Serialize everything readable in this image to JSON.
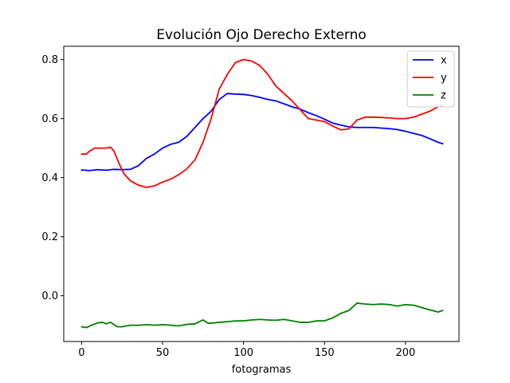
{
  "chart_data": {
    "type": "line",
    "title": "Evolución Ojo Derecho Externo",
    "xlabel": "fotogramas",
    "ylabel": "",
    "xlim": [
      -11,
      233
    ],
    "ylim": [
      -0.155,
      0.845
    ],
    "xticks": [
      0,
      50,
      100,
      150,
      200
    ],
    "yticks": [
      0.0,
      0.2,
      0.4,
      0.6,
      0.8
    ],
    "xtick_labels": [
      "0",
      "50",
      "100",
      "150",
      "200"
    ],
    "ytick_labels": [
      "0.0",
      "0.2",
      "0.4",
      "0.6",
      "0.8"
    ],
    "grid": false,
    "legend_position": "top-right",
    "series": [
      {
        "name": "x",
        "color": "#0000ff",
        "x": [
          0,
          5,
          10,
          15,
          20,
          25,
          30,
          35,
          40,
          45,
          50,
          55,
          60,
          65,
          70,
          75,
          80,
          85,
          90,
          95,
          100,
          105,
          110,
          115,
          120,
          125,
          130,
          135,
          140,
          145,
          150,
          155,
          160,
          165,
          170,
          175,
          180,
          185,
          190,
          195,
          200,
          205,
          210,
          215,
          220,
          223
        ],
        "values": [
          0.426,
          0.424,
          0.427,
          0.425,
          0.428,
          0.427,
          0.428,
          0.44,
          0.465,
          0.48,
          0.5,
          0.513,
          0.52,
          0.54,
          0.57,
          0.6,
          0.625,
          0.665,
          0.685,
          0.683,
          0.682,
          0.678,
          0.672,
          0.665,
          0.66,
          0.65,
          0.64,
          0.632,
          0.62,
          0.61,
          0.598,
          0.585,
          0.578,
          0.572,
          0.57,
          0.57,
          0.57,
          0.568,
          0.566,
          0.563,
          0.557,
          0.55,
          0.543,
          0.532,
          0.52,
          0.515
        ]
      },
      {
        "name": "y",
        "color": "#ff0000",
        "x": [
          0,
          3,
          5,
          8,
          12,
          15,
          18,
          20,
          23,
          26,
          30,
          35,
          40,
          45,
          50,
          55,
          60,
          65,
          70,
          75,
          80,
          85,
          90,
          95,
          100,
          105,
          110,
          115,
          120,
          125,
          130,
          135,
          140,
          145,
          150,
          155,
          160,
          165,
          170,
          175,
          180,
          185,
          190,
          195,
          200,
          205,
          210,
          215,
          220,
          223
        ],
        "values": [
          0.48,
          0.48,
          0.49,
          0.5,
          0.5,
          0.5,
          0.503,
          0.49,
          0.45,
          0.415,
          0.39,
          0.375,
          0.367,
          0.372,
          0.385,
          0.395,
          0.41,
          0.43,
          0.46,
          0.52,
          0.6,
          0.7,
          0.75,
          0.79,
          0.8,
          0.795,
          0.78,
          0.75,
          0.71,
          0.685,
          0.66,
          0.63,
          0.6,
          0.595,
          0.59,
          0.575,
          0.562,
          0.565,
          0.595,
          0.605,
          0.605,
          0.604,
          0.602,
          0.6,
          0.6,
          0.605,
          0.615,
          0.625,
          0.64,
          0.643
        ]
      },
      {
        "name": "z",
        "color": "#008000",
        "x": [
          0,
          3,
          6,
          10,
          13,
          15,
          18,
          22,
          25,
          30,
          35,
          40,
          45,
          50,
          55,
          60,
          65,
          70,
          75,
          78,
          80,
          85,
          90,
          95,
          100,
          105,
          110,
          115,
          120,
          125,
          130,
          135,
          140,
          145,
          150,
          155,
          160,
          165,
          170,
          175,
          180,
          185,
          190,
          195,
          200,
          205,
          210,
          215,
          220,
          223
        ],
        "values": [
          -0.105,
          -0.108,
          -0.1,
          -0.092,
          -0.09,
          -0.095,
          -0.09,
          -0.105,
          -0.105,
          -0.1,
          -0.1,
          -0.098,
          -0.1,
          -0.098,
          -0.1,
          -0.102,
          -0.097,
          -0.095,
          -0.082,
          -0.093,
          -0.093,
          -0.09,
          -0.088,
          -0.085,
          -0.085,
          -0.082,
          -0.08,
          -0.082,
          -0.083,
          -0.08,
          -0.085,
          -0.09,
          -0.09,
          -0.085,
          -0.085,
          -0.075,
          -0.06,
          -0.05,
          -0.025,
          -0.028,
          -0.03,
          -0.028,
          -0.03,
          -0.035,
          -0.03,
          -0.032,
          -0.04,
          -0.048,
          -0.055,
          -0.05
        ]
      }
    ]
  }
}
